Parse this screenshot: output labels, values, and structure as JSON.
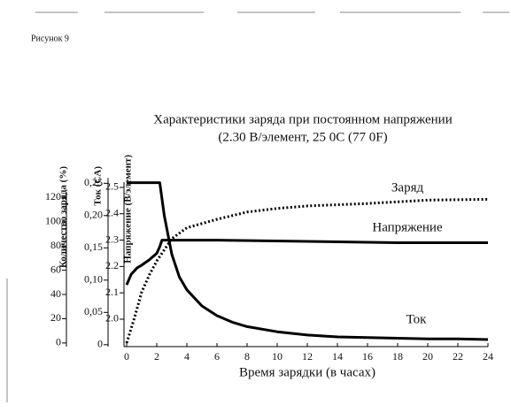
{
  "chart_data": {
    "type": "line",
    "figure_label": "Рисунок 9",
    "title": "Характеристики заряда при постоянном напряжении",
    "subtitle": "(2.30 В/элемент, 25 0C (77 0F)",
    "xlabel": "Время зарядки (в часах)",
    "xlim": [
      0,
      24
    ],
    "xticks": [
      0,
      2,
      4,
      6,
      8,
      10,
      12,
      14,
      16,
      18,
      20,
      22,
      24
    ],
    "y_axes": [
      {
        "label": "Количество заряда (%)",
        "ylim": [
          -3,
          137
        ],
        "yticks": [
          0,
          20,
          40,
          60,
          80,
          100,
          120
        ]
      },
      {
        "label": "Ток (CA)",
        "ylim": [
          -0.003,
          0.26
        ],
        "yticks": [
          0,
          {
            "value": 0.05,
            "label": "0,05"
          },
          {
            "value": 0.1,
            "label": "0,10"
          },
          {
            "value": 0.15,
            "label": "0,15"
          },
          {
            "value": 0.2,
            "label": "0,20"
          },
          {
            "value": 0.25,
            "label": "0,25"
          }
        ]
      },
      {
        "label": "Напряжение (В/элемент)",
        "ylim": [
          1.896,
          2.54
        ],
        "yticks": [
          {
            "value": 2.0,
            "label": "2.0"
          },
          2.1,
          2.2,
          2.3,
          2.4,
          2.5
        ]
      }
    ],
    "series": [
      {
        "name": "Заряд",
        "axis": 0,
        "color": "#000000",
        "style": "dotted",
        "x": [
          0,
          0.5,
          1,
          1.5,
          2,
          3,
          4,
          6,
          8,
          10,
          12,
          16,
          20,
          24
        ],
        "values": [
          0,
          20,
          42,
          56,
          67.6,
          86,
          95,
          102,
          108,
          111,
          113,
          115,
          117.8,
          118.5
        ]
      },
      {
        "name": "Напряжение",
        "axis": 2,
        "color": "#000000",
        "style": "solid",
        "x": [
          0,
          0.3,
          0.7,
          1,
          1.5,
          2,
          2.2,
          2.35,
          6,
          12,
          18,
          24
        ],
        "values": [
          2.13,
          2.17,
          2.195,
          2.205,
          2.225,
          2.25,
          2.275,
          2.3,
          2.3,
          2.295,
          2.29,
          2.29
        ]
      },
      {
        "name": "Ток",
        "axis": 1,
        "color": "#000000",
        "style": "solid",
        "x": [
          0,
          2.2,
          2.5,
          3,
          3.5,
          4,
          5,
          6,
          7,
          8,
          10,
          12,
          14,
          16,
          18,
          20,
          22,
          24
        ],
        "values": [
          0.251,
          0.251,
          0.2,
          0.14,
          0.105,
          0.085,
          0.06,
          0.045,
          0.035,
          0.028,
          0.02,
          0.015,
          0.012,
          0.011,
          0.01,
          0.009,
          0.009,
          0.008
        ]
      }
    ]
  }
}
